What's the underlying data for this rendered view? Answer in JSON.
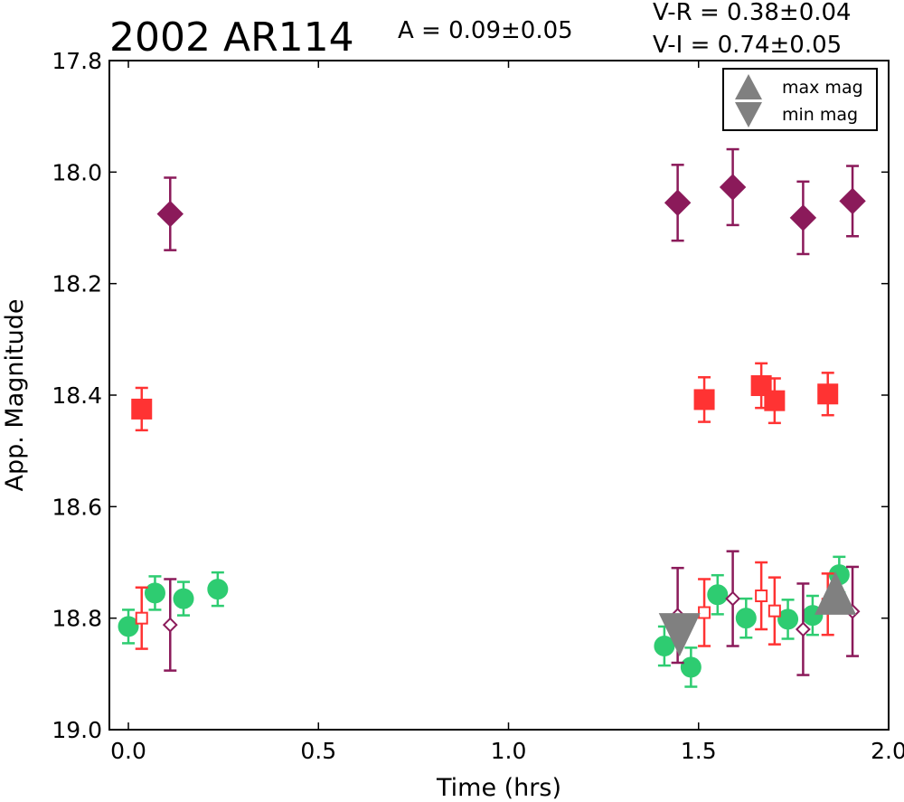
{
  "chart_data": {
    "type": "scatter",
    "title": "2002 AR114",
    "amplitude_text": "A  = 0.09±0.05",
    "color_vr_text": "V-R = 0.38±0.04",
    "color_vi_text": "V-I  = 0.74±0.05",
    "xlabel": "Time (hrs)",
    "ylabel": "App. Magnitude",
    "xlim": [
      -0.05,
      2.0
    ],
    "ylim": [
      19.0,
      17.8
    ],
    "y_inverted": true,
    "xticks": [
      0.0,
      0.5,
      1.0,
      1.5,
      2.0
    ],
    "xtick_labels": [
      "0.0",
      "0.5",
      "1.0",
      "1.5",
      "2.0"
    ],
    "yticks": [
      17.8,
      18.0,
      18.2,
      18.4,
      18.6,
      18.8,
      19.0
    ],
    "ytick_labels": [
      "17.8",
      "18.0",
      "18.2",
      "18.4",
      "18.6",
      "18.8",
      "19.0"
    ],
    "legend": {
      "placement": "top-right",
      "entries": [
        {
          "label": "max mag",
          "marker": "triangle-up"
        },
        {
          "label": "min mag",
          "marker": "triangle-down"
        }
      ]
    },
    "series": [
      {
        "marker": "diamond",
        "filled": true,
        "color": "#8b1a5a",
        "points": [
          {
            "x": 0.11,
            "y": 18.075,
            "err": 0.065
          },
          {
            "x": 1.445,
            "y": 18.055,
            "err": 0.068
          },
          {
            "x": 1.59,
            "y": 18.027,
            "err": 0.068
          },
          {
            "x": 1.775,
            "y": 18.082,
            "err": 0.065
          },
          {
            "x": 1.905,
            "y": 18.052,
            "err": 0.063
          }
        ]
      },
      {
        "marker": "square",
        "filled": true,
        "color": "#ff3333",
        "points": [
          {
            "x": 0.035,
            "y": 18.425,
            "err": 0.038
          },
          {
            "x": 1.515,
            "y": 18.408,
            "err": 0.04
          },
          {
            "x": 1.665,
            "y": 18.383,
            "err": 0.04
          },
          {
            "x": 1.7,
            "y": 18.41,
            "err": 0.04
          },
          {
            "x": 1.84,
            "y": 18.398,
            "err": 0.038
          }
        ]
      },
      {
        "marker": "circle",
        "filled": true,
        "color": "#2ecc71",
        "points": [
          {
            "x": 0.0,
            "y": 18.815,
            "err": 0.03
          },
          {
            "x": 0.07,
            "y": 18.755,
            "err": 0.03
          },
          {
            "x": 0.145,
            "y": 18.765,
            "err": 0.03
          },
          {
            "x": 0.235,
            "y": 18.748,
            "err": 0.03
          },
          {
            "x": 1.41,
            "y": 18.85,
            "err": 0.035
          },
          {
            "x": 1.48,
            "y": 18.888,
            "err": 0.035
          },
          {
            "x": 1.55,
            "y": 18.758,
            "err": 0.035
          },
          {
            "x": 1.625,
            "y": 18.8,
            "err": 0.035
          },
          {
            "x": 1.735,
            "y": 18.802,
            "err": 0.035
          },
          {
            "x": 1.8,
            "y": 18.795,
            "err": 0.035
          },
          {
            "x": 1.87,
            "y": 18.722,
            "err": 0.032
          }
        ]
      },
      {
        "marker": "square",
        "filled": false,
        "color": "#ff3333",
        "points": [
          {
            "x": 0.035,
            "y": 18.8,
            "err": 0.055
          },
          {
            "x": 1.515,
            "y": 18.79,
            "err": 0.06
          },
          {
            "x": 1.665,
            "y": 18.76,
            "err": 0.06
          },
          {
            "x": 1.7,
            "y": 18.787,
            "err": 0.06
          },
          {
            "x": 1.84,
            "y": 18.775,
            "err": 0.055
          }
        ]
      },
      {
        "marker": "diamond",
        "filled": false,
        "color": "#8b1a5a",
        "points": [
          {
            "x": 0.11,
            "y": 18.812,
            "err": 0.082
          },
          {
            "x": 1.445,
            "y": 18.795,
            "err": 0.085
          },
          {
            "x": 1.59,
            "y": 18.765,
            "err": 0.085
          },
          {
            "x": 1.775,
            "y": 18.82,
            "err": 0.082
          },
          {
            "x": 1.905,
            "y": 18.788,
            "err": 0.08
          }
        ]
      },
      {
        "marker": "triangle-down",
        "filled": true,
        "color": "#808080",
        "points": [
          {
            "x": 1.45,
            "y": 18.83
          }
        ]
      },
      {
        "marker": "triangle-up",
        "filled": true,
        "color": "#808080",
        "points": [
          {
            "x": 1.86,
            "y": 18.755
          }
        ]
      }
    ]
  }
}
